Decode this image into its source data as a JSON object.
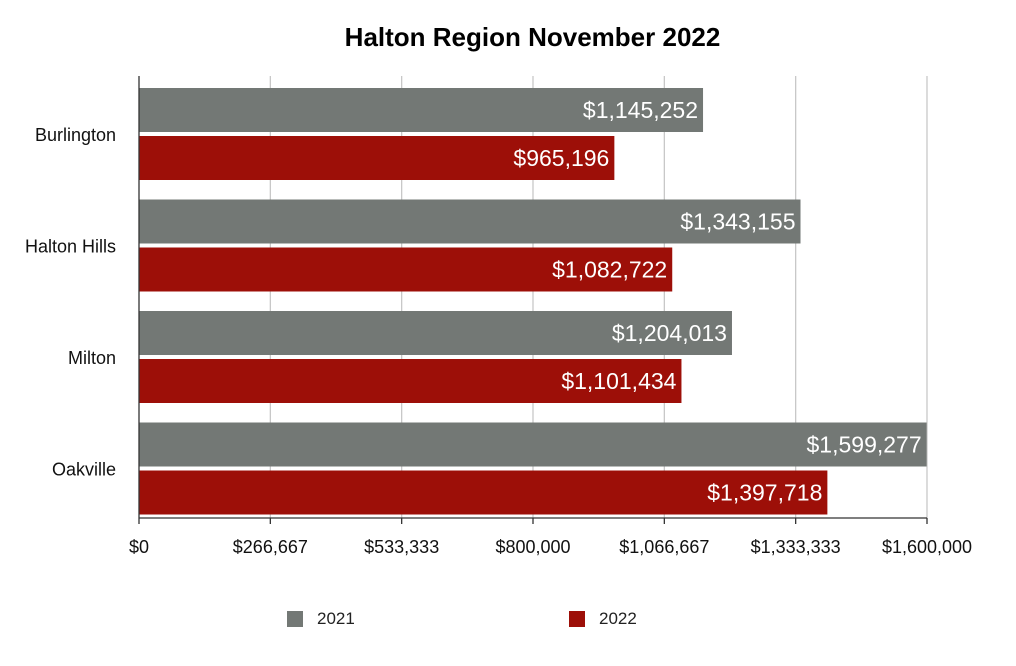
{
  "colors": {
    "series_2021": "#737875",
    "series_2022": "#9d0f08",
    "grid": "#c8c8c8",
    "axis": "#333333"
  },
  "chart_data": {
    "type": "bar",
    "orientation": "horizontal",
    "title": "Halton Region November 2022",
    "categories": [
      "Burlington",
      "Halton Hills",
      "Milton",
      "Oakville"
    ],
    "series": [
      {
        "name": "2021",
        "values": [
          1145252,
          1343155,
          1204013,
          1599277
        ],
        "labels": [
          "$1,145,252",
          "$1,343,155",
          "$1,204,013",
          "$1,599,277"
        ]
      },
      {
        "name": "2022",
        "values": [
          965196,
          1082722,
          1101434,
          1397718
        ],
        "labels": [
          "$965,196",
          "$1,082,722",
          "$1,101,434",
          "$1,397,718"
        ]
      }
    ],
    "xlim": [
      0,
      1600000
    ],
    "x_ticks": [
      0,
      266667,
      533333,
      800000,
      1066667,
      1333333,
      1600000
    ],
    "x_tick_labels": [
      "$0",
      "$266,667",
      "$533,333",
      "$800,000",
      "$1,066,667",
      "$1,333,333",
      "$1,600,000"
    ],
    "xlabel": "",
    "ylabel": "",
    "grid": true,
    "legend_position": "bottom"
  }
}
